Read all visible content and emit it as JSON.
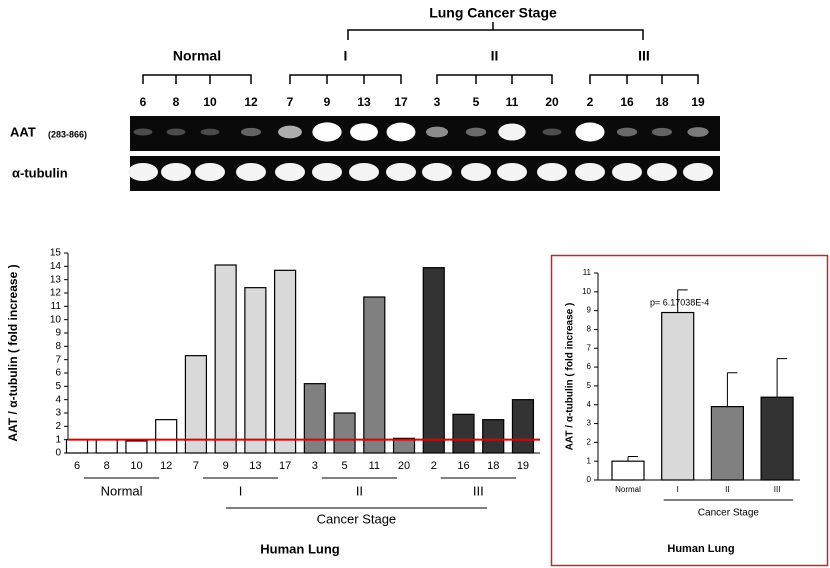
{
  "blot": {
    "title": "Lung Cancer Stage",
    "groups": [
      {
        "label": "Normal",
        "lanes": [
          "6",
          "8",
          "10",
          "12"
        ]
      },
      {
        "label": "I",
        "lanes": [
          "7",
          "9",
          "13",
          "17"
        ]
      },
      {
        "label": "II",
        "lanes": [
          "3",
          "5",
          "11",
          "20"
        ]
      },
      {
        "label": "III",
        "lanes": [
          "2",
          "16",
          "18",
          "19"
        ]
      }
    ],
    "rows": [
      {
        "label": "AAT",
        "sublabel": "(283-866)"
      },
      {
        "label": "α-tubulin"
      }
    ]
  },
  "chart_data": [
    {
      "type": "bar",
      "categories": [
        "6",
        "8",
        "10",
        "12",
        "7",
        "9",
        "13",
        "17",
        "3",
        "5",
        "11",
        "20",
        "2",
        "16",
        "18",
        "19"
      ],
      "values": [
        1,
        1,
        0.9,
        2.5,
        7.3,
        14.1,
        12.4,
        13.7,
        5.2,
        3.0,
        11.7,
        1.1,
        13.9,
        2.9,
        2.5,
        4.0
      ],
      "groups": [
        {
          "label": "Normal",
          "count": 4,
          "color": "#ffffff"
        },
        {
          "label": "I",
          "count": 4,
          "color": "#d9d9d9"
        },
        {
          "label": "II",
          "count": 4,
          "color": "#808080"
        },
        {
          "label": "III",
          "count": 4,
          "color": "#333333"
        }
      ],
      "group_label": "Cancer Stage",
      "reference_line": {
        "value": 1,
        "color": "#e00000"
      },
      "ylim": [
        0,
        15
      ],
      "yticks": [
        0,
        1,
        2,
        3,
        4,
        5,
        6,
        7,
        8,
        9,
        10,
        11,
        12,
        13,
        14,
        15
      ],
      "ylabel": "AAT / α-tubulin ( fold increase )",
      "xlabel": "Human Lung"
    },
    {
      "type": "bar",
      "categories": [
        "Normal",
        "I",
        "II",
        "III"
      ],
      "values": [
        1,
        8.9,
        3.9,
        4.4
      ],
      "errors": [
        0.25,
        1.2,
        1.8,
        2.05
      ],
      "colors": [
        "#ffffff",
        "#d9d9d9",
        "#808080",
        "#333333"
      ],
      "group_label": "Cancer Stage",
      "annotation": "p= 6.17038E-4",
      "ylim": [
        0,
        11
      ],
      "yticks": [
        0,
        1,
        2,
        3,
        4,
        5,
        6,
        7,
        8,
        9,
        10,
        11
      ],
      "ylabel": "AAT / α-tubulin ( fold increase )",
      "xlabel": "Human Lung",
      "border_color": "#d02020"
    }
  ]
}
